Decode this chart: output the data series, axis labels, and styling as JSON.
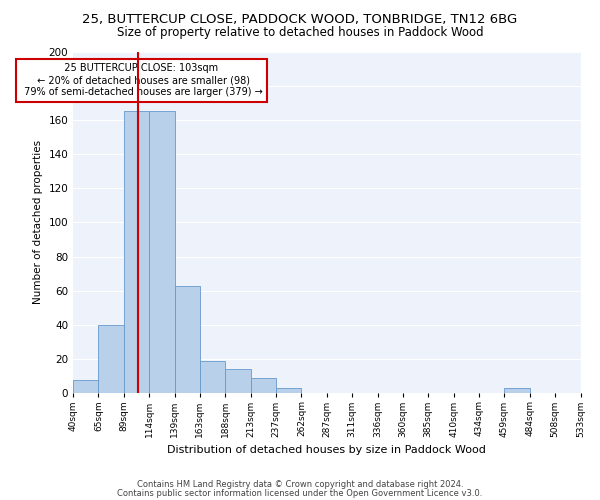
{
  "title": "25, BUTTERCUP CLOSE, PADDOCK WOOD, TONBRIDGE, TN12 6BG",
  "subtitle": "Size of property relative to detached houses in Paddock Wood",
  "xlabel": "Distribution of detached houses by size in Paddock Wood",
  "ylabel": "Number of detached properties",
  "bar_values": [
    8,
    40,
    165,
    165,
    63,
    19,
    14,
    9,
    3,
    0,
    0,
    0,
    0,
    0,
    0,
    0,
    0,
    3,
    0,
    0
  ],
  "bar_labels": [
    "40sqm",
    "65sqm",
    "89sqm",
    "114sqm",
    "139sqm",
    "163sqm",
    "188sqm",
    "213sqm",
    "237sqm",
    "262sqm",
    "287sqm",
    "311sqm",
    "336sqm",
    "360sqm",
    "385sqm",
    "410sqm",
    "434sqm",
    "459sqm",
    "484sqm",
    "508sqm",
    "533sqm"
  ],
  "bar_color": "#b8d0ea",
  "bar_edge_color": "#6699cc",
  "vline_color": "#cc0000",
  "annotation_text": "  25 BUTTERCUP CLOSE: 103sqm  \n ← 20% of detached houses are smaller (98)\n 79% of semi-detached houses are larger (379) →",
  "annotation_box_color": "white",
  "annotation_box_edge": "#cc0000",
  "ylim": [
    0,
    200
  ],
  "yticks": [
    0,
    20,
    40,
    60,
    80,
    100,
    120,
    140,
    160,
    180,
    200
  ],
  "footer1": "Contains HM Land Registry data © Crown copyright and database right 2024.",
  "footer2": "Contains public sector information licensed under the Open Government Licence v3.0.",
  "bg_color": "#eef2fa",
  "title_fontsize": 9.5,
  "subtitle_fontsize": 8.5,
  "n_bars": 20
}
